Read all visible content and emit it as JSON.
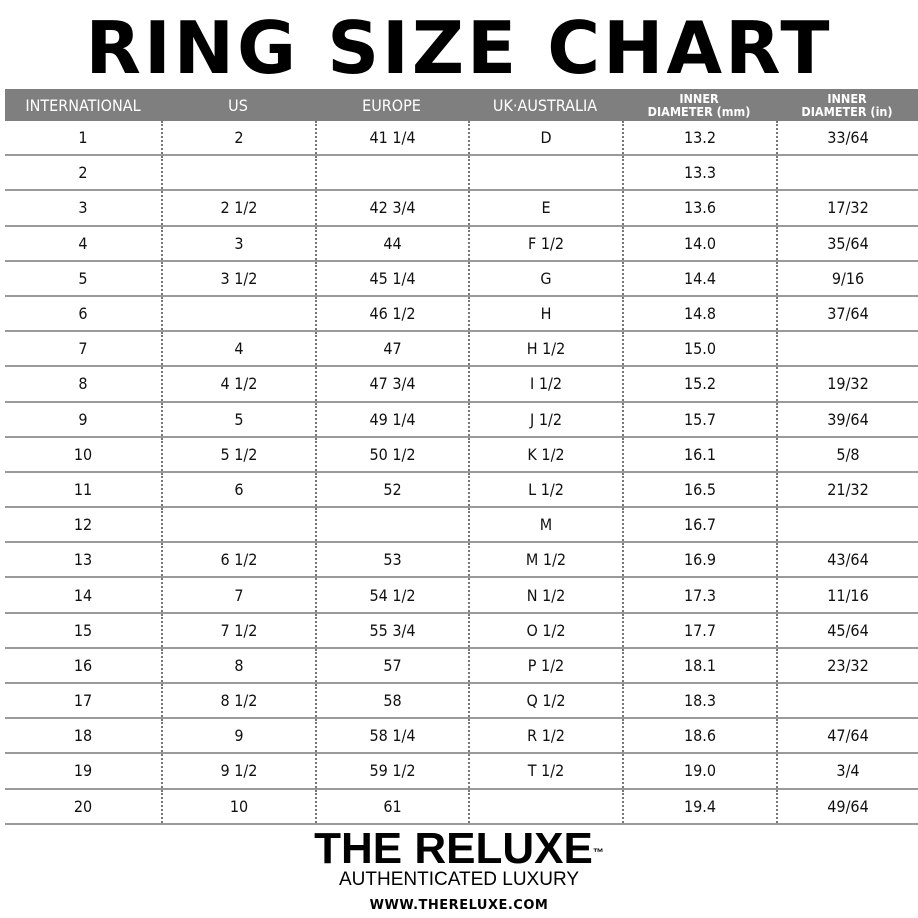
{
  "title": "RING SIZE CHART",
  "columns": [
    {
      "label": "INTERNATIONAL"
    },
    {
      "label": "US"
    },
    {
      "label": "EUROPE"
    },
    {
      "label": "UK·AUSTRALIA"
    },
    {
      "label": "INNER",
      "label2": "DIAMETER (mm)"
    },
    {
      "label": "INNER",
      "label2": "DIAMETER (in)"
    }
  ],
  "rows": [
    [
      "1",
      "2",
      "41 1/4",
      "D",
      "13.2",
      "33/64"
    ],
    [
      "2",
      "",
      "",
      "",
      "13.3",
      ""
    ],
    [
      "3",
      "2 1/2",
      "42 3/4",
      "E",
      "13.6",
      "17/32"
    ],
    [
      "4",
      "3",
      "44",
      "F 1/2",
      "14.0",
      "35/64"
    ],
    [
      "5",
      "3 1/2",
      "45 1/4",
      "G",
      "14.4",
      "9/16"
    ],
    [
      "6",
      "",
      "46 1/2",
      "H",
      "14.8",
      "37/64"
    ],
    [
      "7",
      "4",
      "47",
      "H 1/2",
      "15.0",
      ""
    ],
    [
      "8",
      "4 1/2",
      "47 3/4",
      "I 1/2",
      "15.2",
      "19/32"
    ],
    [
      "9",
      "5",
      "49 1/4",
      "J 1/2",
      "15.7",
      "39/64"
    ],
    [
      "10",
      "5 1/2",
      "50 1/2",
      "K 1/2",
      "16.1",
      "5/8"
    ],
    [
      "11",
      "6",
      "52",
      "L 1/2",
      "16.5",
      "21/32"
    ],
    [
      "12",
      "",
      "",
      "M",
      "16.7",
      ""
    ],
    [
      "13",
      "6 1/2",
      "53",
      "M 1/2",
      "16.9",
      "43/64"
    ],
    [
      "14",
      "7",
      "54 1/2",
      "N 1/2",
      "17.3",
      "11/16"
    ],
    [
      "15",
      "7 1/2",
      "55 3/4",
      "O 1/2",
      "17.7",
      "45/64"
    ],
    [
      "16",
      "8",
      "57",
      "P 1/2",
      "18.1",
      "23/32"
    ],
    [
      "17",
      "8 1/2",
      "58",
      "Q 1/2",
      "18.3",
      ""
    ],
    [
      "18",
      "9",
      "58 1/4",
      "R 1/2",
      "18.6",
      "47/64"
    ],
    [
      "19",
      "9 1/2",
      "59 1/2",
      "T 1/2",
      "19.0",
      "3/4"
    ],
    [
      "20",
      "10",
      "61",
      "",
      "19.4",
      "49/64"
    ]
  ],
  "footer": {
    "brand": "THE RELUXE",
    "tm": "™",
    "tagline": "AUTHENTICATED LUXURY",
    "url": "WWW.THERELUXE.COM"
  },
  "colors": {
    "header_bg": "#7f7f7f",
    "header_text": "#ffffff",
    "rule": "#9a9a9a"
  }
}
